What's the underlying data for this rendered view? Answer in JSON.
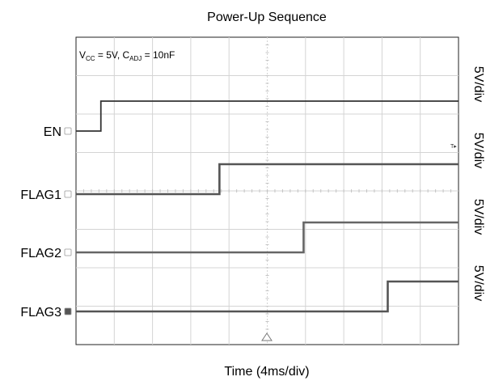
{
  "chart_data": {
    "type": "line",
    "title": "Power-Up Sequence",
    "xlabel": "Time (4ms/div)",
    "ylabel": "",
    "xlim": [
      0,
      40
    ],
    "x_divisions": 10,
    "y_divisions": 8,
    "grid": true,
    "condition": {
      "vcc_main": "V",
      "vcc_sub": "CC",
      "vcc_value": " = 5V, C",
      "cadj_sub": "ADJ",
      "cadj_value": " = 10nF"
    },
    "trigger_marker": "T▸",
    "series": [
      {
        "name": "EN",
        "scale": "5V/div",
        "color": "#333333",
        "low": 0,
        "high": 5,
        "transition_ms": 2.6
      },
      {
        "name": "FLAG1",
        "scale": "5V/div",
        "color": "#555555",
        "low": 0,
        "high": 5,
        "transition_ms": 15.0
      },
      {
        "name": "FLAG2",
        "scale": "5V/div",
        "color": "#666666",
        "low": 0,
        "high": 5,
        "transition_ms": 23.8
      },
      {
        "name": "FLAG3",
        "scale": "5V/div",
        "color": "#555555",
        "low": 0,
        "high": 5,
        "transition_ms": 32.6
      }
    ]
  }
}
